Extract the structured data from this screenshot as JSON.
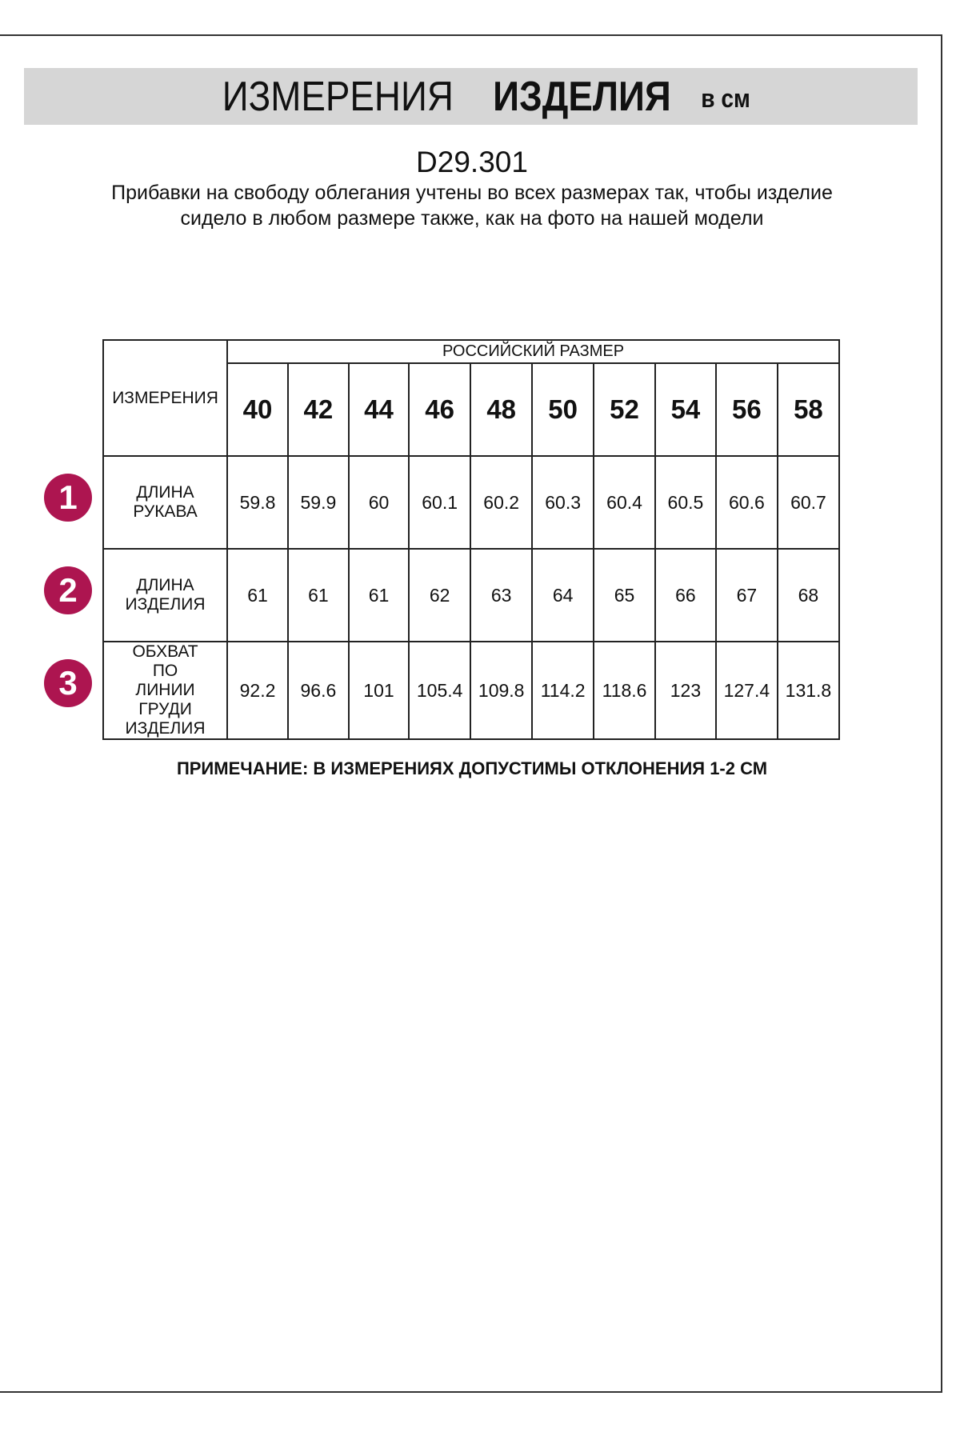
{
  "header": {
    "title_regular": "ИЗМЕРЕНИЯ",
    "title_bold": "ИЗДЕЛИЯ",
    "unit": "в см"
  },
  "product_code": "D29.301",
  "description": "Прибавки на свободу облегания учтены во всех размерах так, чтобы изделие сидело в любом размере также, как на фото на нашей модели",
  "table": {
    "measure_header": "ИЗМЕРЕНИЯ",
    "size_header": "РОССИЙСКИЙ РАЗМЕР",
    "sizes": [
      "40",
      "42",
      "44",
      "46",
      "48",
      "50",
      "52",
      "54",
      "56",
      "58"
    ],
    "rows": [
      {
        "num": "1",
        "label": "ДЛИНА РУКАВА",
        "values": [
          "59.8",
          "59.9",
          "60",
          "60.1",
          "60.2",
          "60.3",
          "60.4",
          "60.5",
          "60.6",
          "60.7"
        ]
      },
      {
        "num": "2",
        "label": "ДЛИНА ИЗДЕЛИЯ",
        "values": [
          "61",
          "61",
          "61",
          "62",
          "63",
          "64",
          "65",
          "66",
          "67",
          "68"
        ]
      },
      {
        "num": "3",
        "label": "ОБХВАТ ПО ЛИНИИ ГРУДИ ИЗДЕЛИЯ",
        "values": [
          "92.2",
          "96.6",
          "101",
          "105.4",
          "109.8",
          "114.2",
          "118.6",
          "123",
          "127.4",
          "131.8"
        ]
      }
    ]
  },
  "note": "ПРИМЕЧАНИЕ: В ИЗМЕРЕНИЯХ ДОПУСТИМЫ ОТКЛОНЕНИЯ 1-2 СМ",
  "colors": {
    "badge": "#ad1550",
    "band": "#d6d6d6"
  }
}
